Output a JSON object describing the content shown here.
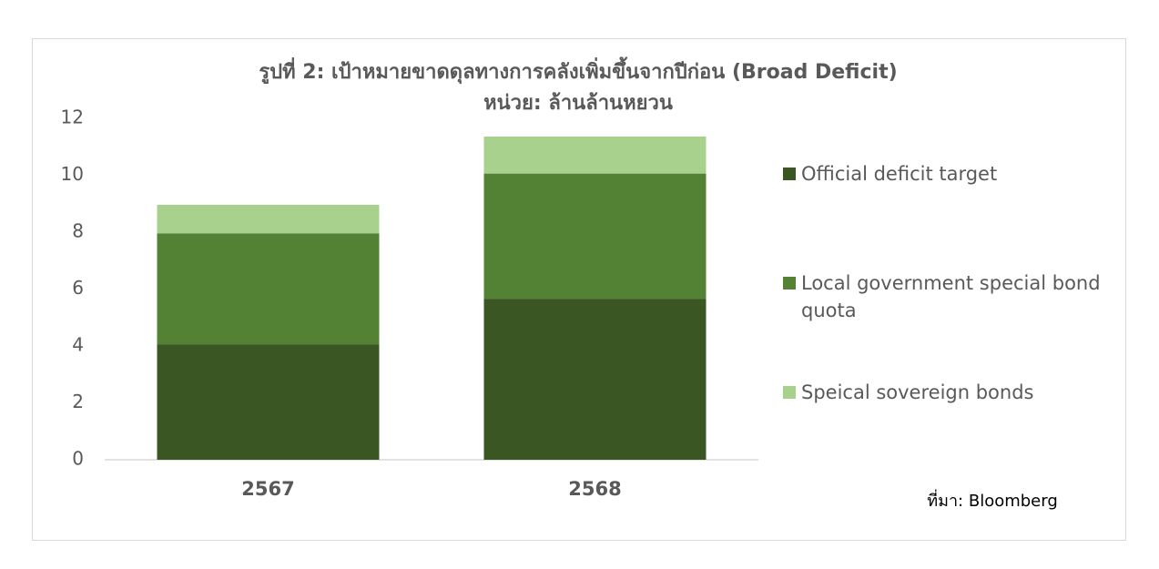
{
  "chart_data": {
    "type": "stacked_bar",
    "title": "รูปที่ 2: เป้าหมายขาดดุลทางการคลังเพิ่มขึ้นจากปีก่อน (Broad Deficit)",
    "subtitle": "หน่วย: ล้านล้านหยวน",
    "categories": [
      "2567",
      "2568"
    ],
    "series": [
      {
        "name": "Official deficit target",
        "color": "#3a5623",
        "values": [
          4.06,
          5.66
        ]
      },
      {
        "name": "Local government special bond quota",
        "color": "#548235",
        "values": [
          3.9,
          4.4
        ]
      },
      {
        "name": "Speical sovereign bonds",
        "color": "#a9d18e",
        "values": [
          1.0,
          1.3
        ]
      }
    ],
    "ylim": [
      0,
      12
    ],
    "yticks": [
      0,
      2,
      4,
      6,
      8,
      10,
      12
    ],
    "grid": false,
    "legend": "right",
    "source": "ที่มา: Bloomberg"
  }
}
